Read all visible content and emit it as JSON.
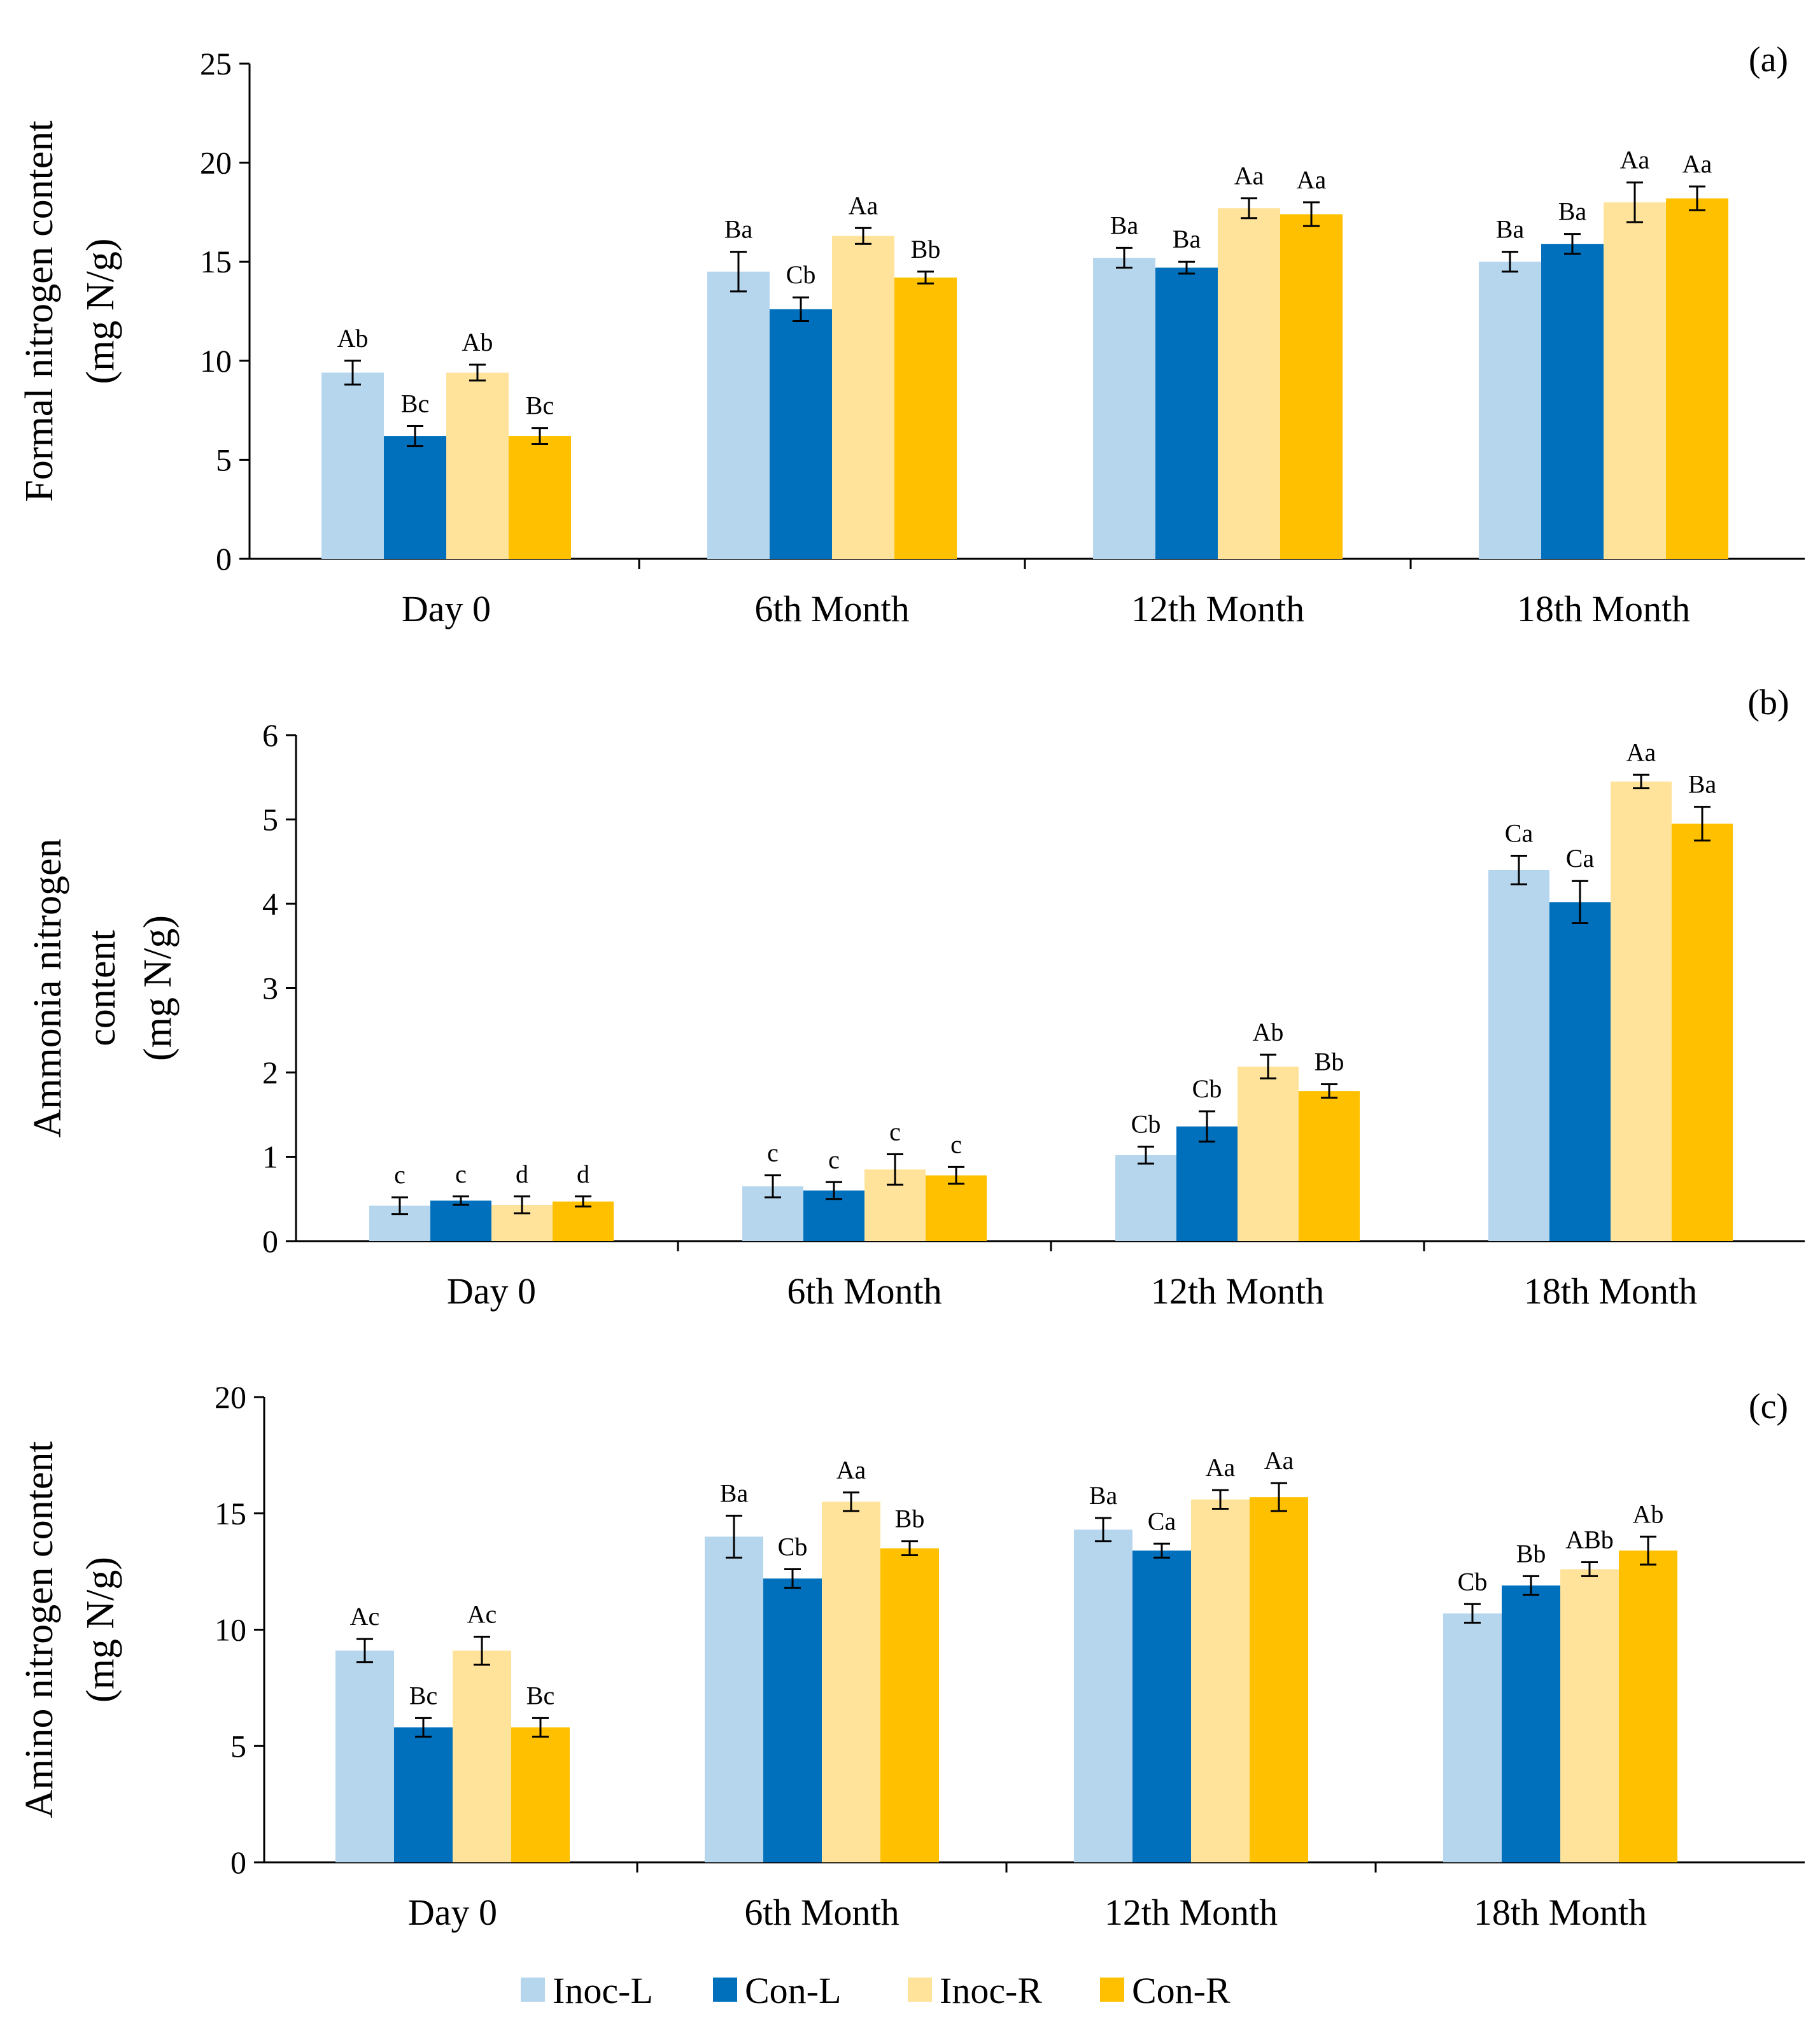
{
  "chart_data": [
    {
      "type": "bar",
      "panel_label": "(a)",
      "ylabel_lines": [
        "Formal nitrogen content",
        "(mg N/g)"
      ],
      "categories": [
        "Day 0",
        "6th Month",
        "12th Month",
        "18th Month"
      ],
      "ylim": [
        0,
        25
      ],
      "yticks": [
        0,
        5,
        10,
        15,
        20,
        25
      ],
      "series": [
        {
          "name": "Inoc-L",
          "values": [
            9.4,
            14.5,
            15.2,
            15.0
          ],
          "errors": [
            0.6,
            1.0,
            0.5,
            0.5
          ],
          "sig": [
            "Ab",
            "Ba",
            "Ba",
            "Ba"
          ]
        },
        {
          "name": "Con-L",
          "values": [
            6.2,
            12.6,
            14.7,
            15.9
          ],
          "errors": [
            0.5,
            0.6,
            0.3,
            0.5
          ],
          "sig": [
            "Bc",
            "Cb",
            "Ba",
            "Ba"
          ]
        },
        {
          "name": "Inoc-R",
          "values": [
            9.4,
            16.3,
            17.7,
            18.0
          ],
          "errors": [
            0.4,
            0.4,
            0.5,
            1.0
          ],
          "sig": [
            "Ab",
            "Aa",
            "Aa",
            "Aa"
          ]
        },
        {
          "name": "Con-R",
          "values": [
            6.2,
            14.2,
            17.4,
            18.2
          ],
          "errors": [
            0.4,
            0.3,
            0.6,
            0.6
          ],
          "sig": [
            "Bc",
            "Bb",
            "Aa",
            "Aa"
          ]
        }
      ]
    },
    {
      "type": "bar",
      "panel_label": "(b)",
      "ylabel_lines": [
        "Ammonia nitrogen",
        "content",
        "(mg N/g)"
      ],
      "categories": [
        "Day 0",
        "6th Month",
        "12th Month",
        "18th Month"
      ],
      "ylim": [
        0,
        6
      ],
      "yticks": [
        0,
        1,
        2,
        3,
        4,
        5,
        6
      ],
      "series": [
        {
          "name": "Inoc-L",
          "values": [
            0.42,
            0.65,
            1.02,
            4.4
          ],
          "errors": [
            0.1,
            0.13,
            0.1,
            0.17
          ],
          "sig": [
            "c",
            "c",
            "Cb",
            "Ca"
          ]
        },
        {
          "name": "Con-L",
          "values": [
            0.48,
            0.6,
            1.36,
            4.02
          ],
          "errors": [
            0.05,
            0.1,
            0.18,
            0.25
          ],
          "sig": [
            "c",
            "c",
            "Cb",
            "Ca"
          ]
        },
        {
          "name": "Inoc-R",
          "values": [
            0.43,
            0.85,
            2.07,
            5.45
          ],
          "errors": [
            0.1,
            0.18,
            0.14,
            0.08
          ],
          "sig": [
            "d",
            "c",
            "Ab",
            "Aa"
          ]
        },
        {
          "name": "Con-R",
          "values": [
            0.47,
            0.78,
            1.78,
            4.95
          ],
          "errors": [
            0.06,
            0.1,
            0.08,
            0.2
          ],
          "sig": [
            "d",
            "c",
            "Bb",
            "Ba"
          ]
        }
      ]
    },
    {
      "type": "bar",
      "panel_label": "(c)",
      "ylabel_lines": [
        "Amino nitrogen content",
        "(mg N/g)"
      ],
      "categories": [
        "Day 0",
        "6th Month",
        "12th Month",
        "18th Month"
      ],
      "ylim": [
        0,
        20
      ],
      "yticks": [
        0,
        5,
        10,
        15,
        20
      ],
      "series": [
        {
          "name": "Inoc-L",
          "values": [
            9.1,
            14.0,
            14.3,
            10.7
          ],
          "errors": [
            0.5,
            0.9,
            0.5,
            0.4
          ],
          "sig": [
            "Ac",
            "Ba",
            "Ba",
            "Cb"
          ]
        },
        {
          "name": "Con-L",
          "values": [
            5.8,
            12.2,
            13.4,
            11.9
          ],
          "errors": [
            0.4,
            0.4,
            0.3,
            0.4
          ],
          "sig": [
            "Bc",
            "Cb",
            "Ca",
            "Bb"
          ]
        },
        {
          "name": "Inoc-R",
          "values": [
            9.1,
            15.5,
            15.6,
            12.6
          ],
          "errors": [
            0.6,
            0.4,
            0.4,
            0.3
          ],
          "sig": [
            "Ac",
            "Aa",
            "Aa",
            "ABb"
          ]
        },
        {
          "name": "Con-R",
          "values": [
            5.8,
            13.5,
            15.7,
            13.4
          ],
          "errors": [
            0.4,
            0.3,
            0.6,
            0.6
          ],
          "sig": [
            "Bc",
            "Bb",
            "Aa",
            "Ab"
          ]
        }
      ]
    }
  ],
  "legend": {
    "items": [
      {
        "name": "Inoc-L",
        "color": "#b6d6ee"
      },
      {
        "name": "Con-L",
        "color": "#0070bd"
      },
      {
        "name": "Inoc-R",
        "color": "#ffe39a"
      },
      {
        "name": "Con-R",
        "color": "#ffc000"
      }
    ]
  }
}
